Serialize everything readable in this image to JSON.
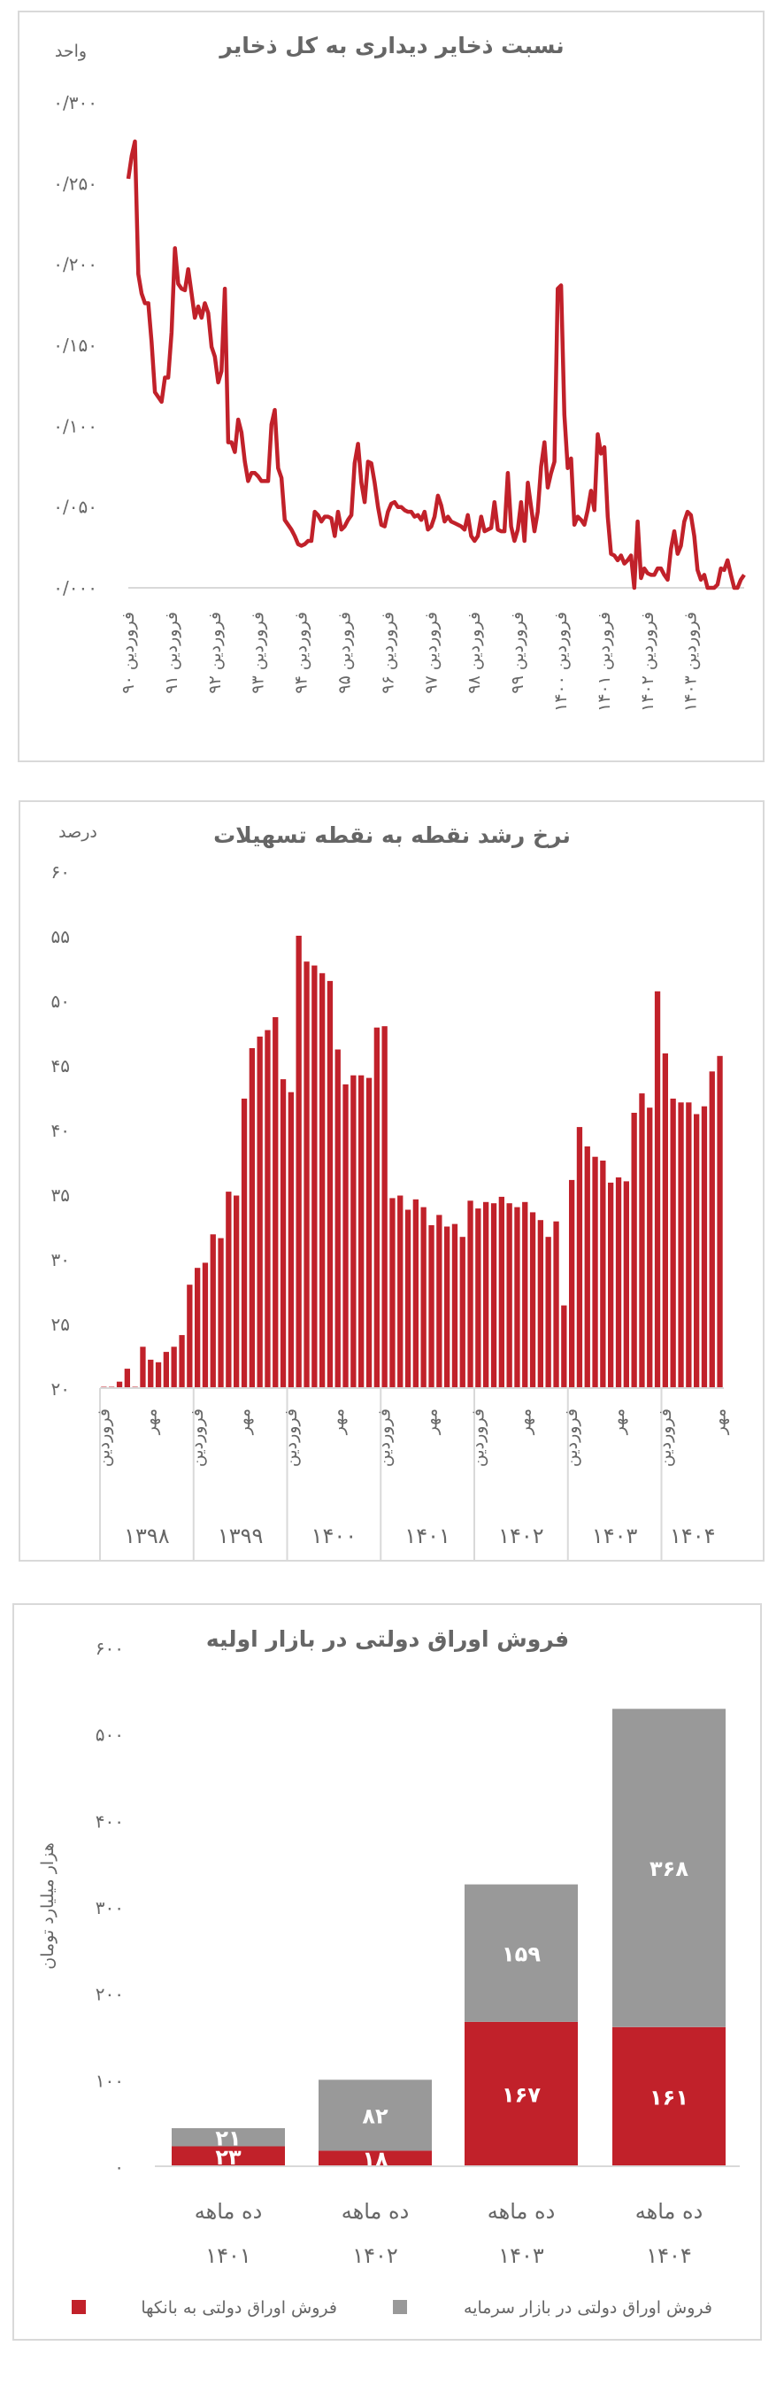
{
  "colors": {
    "red": "#c1212a",
    "gray": "#999999",
    "text": "#666666"
  },
  "chart_data": [
    {
      "type": "line",
      "title": "نسبت ذخایر دیداری به کل ذخایر",
      "ylabel": "واحد",
      "ylim": [
        0,
        0.3
      ],
      "yticks": [
        0,
        0.05,
        0.1,
        0.15,
        0.2,
        0.25,
        0.3
      ],
      "ytick_labels": [
        "۰/۰۰۰",
        "۰/۰۵۰",
        "۰/۱۰۰",
        "۰/۱۵۰",
        "۰/۲۰۰",
        "۰/۲۵۰",
        "۰/۳۰۰"
      ],
      "x_tick_labels": [
        "فروردین ۹۰",
        "فروردین ۹۱",
        "فروردین ۹۲",
        "فروردین ۹۳",
        "فروردین ۹۴",
        "فروردین ۹۵",
        "فروردین ۹۶",
        "فروردین ۹۷",
        "فروردین ۹۸",
        "فروردین ۹۹",
        "فروردین ۱۴۰۰",
        "فروردین ۱۴۰۱",
        "فروردین ۱۴۰۲",
        "فروردین ۱۴۰۳"
      ],
      "grid": false,
      "series_color": "#c1212a",
      "values": [
        0.253,
        0.267,
        0.276,
        0.194,
        0.182,
        0.176,
        0.176,
        0.152,
        0.121,
        0.118,
        0.115,
        0.13,
        0.13,
        0.158,
        0.21,
        0.188,
        0.185,
        0.184,
        0.197,
        0.182,
        0.167,
        0.174,
        0.167,
        0.176,
        0.17,
        0.149,
        0.143,
        0.127,
        0.134,
        0.185,
        0.09,
        0.09,
        0.084,
        0.104,
        0.096,
        0.078,
        0.066,
        0.071,
        0.071,
        0.069,
        0.066,
        0.066,
        0.066,
        0.101,
        0.11,
        0.074,
        0.068,
        0.042,
        0.039,
        0.036,
        0.032,
        0.027,
        0.026,
        0.027,
        0.029,
        0.029,
        0.047,
        0.045,
        0.041,
        0.044,
        0.044,
        0.043,
        0.032,
        0.047,
        0.036,
        0.038,
        0.042,
        0.045,
        0.077,
        0.089,
        0.065,
        0.053,
        0.078,
        0.077,
        0.065,
        0.05,
        0.039,
        0.038,
        0.047,
        0.052,
        0.053,
        0.05,
        0.05,
        0.048,
        0.047,
        0.047,
        0.044,
        0.045,
        0.042,
        0.047,
        0.036,
        0.038,
        0.044,
        0.057,
        0.051,
        0.041,
        0.044,
        0.041,
        0.04,
        0.039,
        0.038,
        0.036,
        0.045,
        0.032,
        0.029,
        0.032,
        0.044,
        0.035,
        0.036,
        0.037,
        0.053,
        0.036,
        0.035,
        0.035,
        0.071,
        0.038,
        0.029,
        0.036,
        0.053,
        0.029,
        0.065,
        0.05,
        0.035,
        0.047,
        0.075,
        0.09,
        0.062,
        0.071,
        0.078,
        0.185,
        0.187,
        0.107,
        0.074,
        0.08,
        0.039,
        0.044,
        0.042,
        0.039,
        0.048,
        0.06,
        0.048,
        0.095,
        0.083,
        0.087,
        0.044,
        0.021,
        0.02,
        0.017,
        0.02,
        0.015,
        0.017,
        0.02,
        0.0,
        0.041,
        0.006,
        0.012,
        0.009,
        0.008,
        0.008,
        0.012,
        0.012,
        0.008,
        0.005,
        0.024,
        0.035,
        0.021,
        0.026,
        0.041,
        0.047,
        0.045,
        0.032,
        0.011,
        0.005,
        0.008,
        0.0,
        0.0,
        0.0,
        0.002,
        0.012,
        0.011,
        0.017,
        0.008,
        0.0,
        0.0,
        0.005,
        0.008
      ]
    },
    {
      "type": "bar",
      "title": "نرخ رشد نقطه به نقطه تسهیلات",
      "ylabel": "درصد",
      "ylim": [
        20,
        60
      ],
      "yticks": [
        20,
        25,
        30,
        35,
        40,
        45,
        50,
        55,
        60
      ],
      "ytick_labels": [
        "۲۰",
        "۲۵",
        "۳۰",
        "۳۵",
        "۴۰",
        "۴۵",
        "۵۰",
        "۵۵",
        "۶۰"
      ],
      "years": [
        {
          "label": "۱۳۹۸",
          "months": 12
        },
        {
          "label": "۱۳۹۹",
          "months": 12
        },
        {
          "label": "۱۴۰۰",
          "months": 12
        },
        {
          "label": "۱۴۰۱",
          "months": 12
        },
        {
          "label": "۱۴۰۲",
          "months": 12
        },
        {
          "label": "۱۴۰۳",
          "months": 12
        },
        {
          "label": "۱۴۰۴",
          "months": 8
        }
      ],
      "month_labels": {
        "farvardin": "فروردین",
        "mehr": "مهر"
      },
      "grid": false,
      "series_color": "#c1212a",
      "values": [
        19.7,
        19.7,
        20.5,
        21.5,
        20.0,
        23.2,
        22.2,
        22.0,
        22.8,
        23.2,
        24.1,
        28.0,
        29.3,
        29.7,
        31.9,
        31.6,
        35.2,
        34.9,
        42.4,
        46.3,
        47.2,
        47.7,
        48.7,
        43.9,
        42.9,
        55.0,
        53.0,
        52.7,
        52.1,
        51.5,
        46.2,
        43.5,
        44.2,
        44.2,
        44.0,
        47.9,
        48.0,
        34.7,
        34.9,
        33.8,
        34.6,
        34.0,
        32.6,
        33.4,
        32.5,
        32.7,
        31.7,
        34.5,
        33.9,
        34.4,
        34.3,
        34.8,
        34.3,
        34.0,
        34.4,
        33.6,
        33.0,
        31.7,
        32.9,
        26.4,
        36.1,
        40.2,
        38.7,
        37.9,
        37.6,
        35.9,
        36.3,
        36.0,
        41.3,
        42.8,
        41.7,
        50.7,
        45.9,
        42.4,
        42.1,
        42.1,
        41.2,
        41.8,
        44.5,
        45.7
      ]
    },
    {
      "type": "bar",
      "stacked": true,
      "title": "فروش اوراق دولتی در بازار اولیه",
      "ylabel": "هزار میلیارد تومان",
      "ylim": [
        0,
        600
      ],
      "yticks": [
        0,
        100,
        200,
        300,
        400,
        500,
        600
      ],
      "ytick_labels": [
        "۰",
        "۱۰۰",
        "۲۰۰",
        "۳۰۰",
        "۴۰۰",
        "۵۰۰",
        "۶۰۰"
      ],
      "categories": [
        {
          "line1": "ده ماهه",
          "line2": "۱۴۰۱"
        },
        {
          "line1": "ده ماهه",
          "line2": "۱۴۰۲"
        },
        {
          "line1": "ده ماهه",
          "line2": "۱۴۰۳"
        },
        {
          "line1": "ده ماهه",
          "line2": "۱۴۰۴"
        }
      ],
      "legend_position": "bottom",
      "series": [
        {
          "name": "فروش اوراق دولتی  به بانکها",
          "color": "#c1212a",
          "values": [
            23,
            18,
            167,
            161
          ],
          "labels": [
            "۲۳",
            "۱۸",
            "۱۶۷",
            "۱۶۱"
          ]
        },
        {
          "name": "فروش اوراق دولتی  در بازار سرمایه",
          "color": "#999999",
          "values": [
            21,
            82,
            159,
            368
          ],
          "labels": [
            "۲۱",
            "۸۲",
            "۱۵۹",
            "۳۶۸"
          ]
        }
      ]
    }
  ]
}
